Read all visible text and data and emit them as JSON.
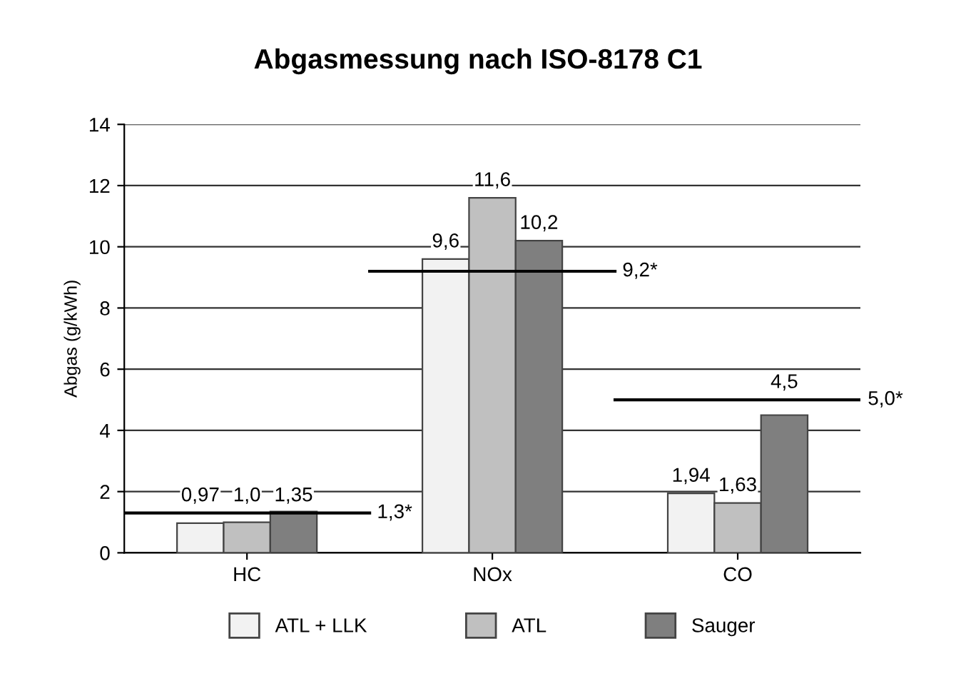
{
  "chart_data": {
    "type": "bar",
    "title": "Abgasmessung nach ISO-8178 C1",
    "ylabel": "Abgas (g/kWh)",
    "categories": [
      "HC",
      "NOx",
      "CO"
    ],
    "series": [
      {
        "name": "ATL + LLK",
        "color": "#f2f2f2",
        "values": [
          0.97,
          9.6,
          1.94
        ],
        "value_labels": [
          "0,97",
          "9,6",
          "1,94"
        ]
      },
      {
        "name": "ATL",
        "color": "#c0c0c0",
        "values": [
          1.0,
          11.6,
          1.63
        ],
        "value_labels": [
          "1,0",
          "11,6",
          "1,63"
        ]
      },
      {
        "name": "Sauger",
        "color": "#7f7f7f",
        "values": [
          1.35,
          10.2,
          4.5
        ],
        "value_labels": [
          "1,35",
          "10,2",
          "4,5"
        ]
      }
    ],
    "ref_lines": [
      {
        "axis": "y",
        "value": 1.3,
        "label": "1,3*",
        "color": "#000000"
      },
      {
        "axis": "y",
        "value": 9.2,
        "label": "9,2*",
        "color": "#000000"
      },
      {
        "axis": "y",
        "value": 5.0,
        "label": "5,0*",
        "color": "#000000"
      }
    ],
    "ylim": [
      0,
      14
    ],
    "yticks": [
      0,
      2,
      4,
      6,
      8,
      10,
      12,
      14
    ],
    "grid": "y",
    "legend": "bottom"
  }
}
